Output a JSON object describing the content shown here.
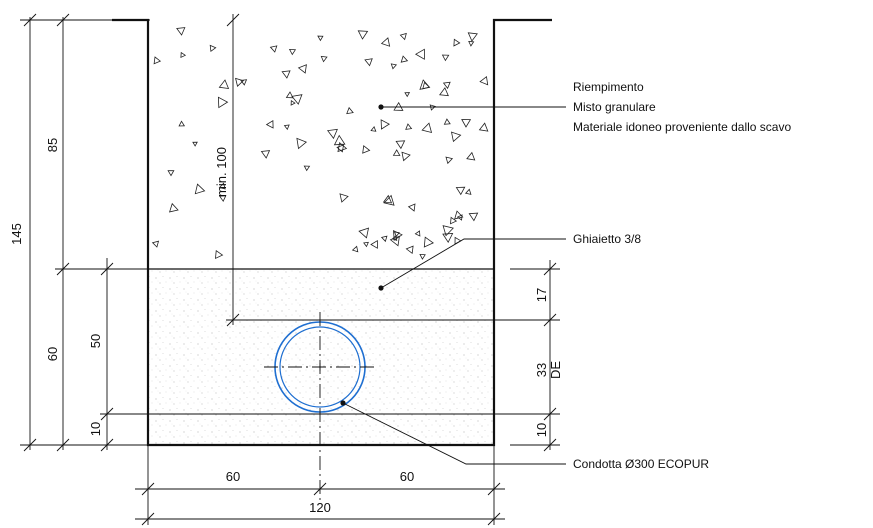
{
  "labels": {
    "fill_line1": "Riempimento",
    "fill_line2": "Misto granulare",
    "fill_line3": "Materiale idoneo proveniente dallo scavo",
    "gravel": "Ghiaietto 3/8",
    "pipe": "Condotta Ø300 ECOPUR"
  },
  "dimensions": {
    "total_height": "145",
    "upper_height": "85",
    "lower_height": "60",
    "bed_to_top_gravel": "50",
    "bed_bottom": "10",
    "min_cover": "min. 100",
    "gravel_over_pipe": "17",
    "pipe_de_value": "33",
    "pipe_de_unit": "DE",
    "right_bottom": "10",
    "half_left": "60",
    "half_right": "60",
    "total_width": "120"
  },
  "colors": {
    "line": "#111111",
    "pipe": "#1f6fd1",
    "gravel_speckle": "#9a9a9a"
  }
}
